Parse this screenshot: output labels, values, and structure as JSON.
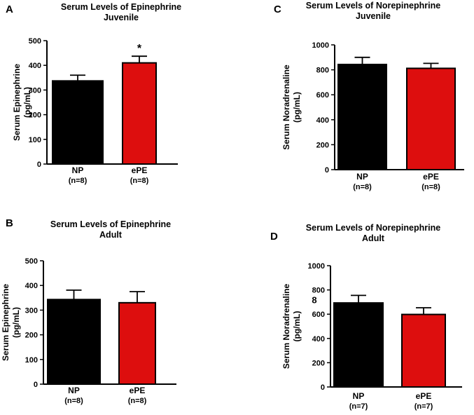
{
  "colors": {
    "np": "#000000",
    "epe": "#dd0e0e",
    "axis": "#000000"
  },
  "chart_data": [
    {
      "panel": "A",
      "type": "bar",
      "title": [
        "Serum Levels of Epinephrine",
        "Juvenile"
      ],
      "ylabel": [
        "Serum Epinephrine",
        "(pg/mL)"
      ],
      "ylim": [
        0,
        500
      ],
      "yticks": [
        "0",
        "100",
        "200",
        "300",
        "400",
        "500"
      ],
      "categories": [
        [
          "NP",
          "(n=8)"
        ],
        [
          "ePE",
          "(n=8)"
        ]
      ],
      "values": [
        337,
        410
      ],
      "errors": [
        23,
        27
      ],
      "significance": [
        "",
        "*"
      ]
    },
    {
      "panel": "B",
      "type": "bar",
      "title": [
        "Serum Levels of Epinephrine",
        "Adult"
      ],
      "ylabel": [
        "Serum Epinephrine",
        "(pg/mL)"
      ],
      "ylim": [
        0,
        500
      ],
      "yticks": [
        "0",
        "100",
        "200",
        "300",
        "400",
        "500"
      ],
      "categories": [
        [
          "NP",
          "(n=8)"
        ],
        [
          "ePE",
          "(n=8)"
        ]
      ],
      "values": [
        343,
        330
      ],
      "errors": [
        38,
        45
      ],
      "significance": [
        "",
        ""
      ]
    },
    {
      "panel": "C",
      "type": "bar",
      "title": [
        "Serum Levels of Norepinephrine",
        "Juvenile"
      ],
      "ylabel": [
        "Serum Noradrenaline",
        "(pg/mL)"
      ],
      "ylim": [
        0,
        1000
      ],
      "yticks": [
        "0",
        "200",
        "400",
        "600",
        "800",
        "1000"
      ],
      "categories": [
        [
          "NP",
          "(n=8)"
        ],
        [
          "ePE",
          "(n=8)"
        ]
      ],
      "values": [
        843,
        812
      ],
      "errors": [
        57,
        40
      ],
      "significance": [
        "",
        ""
      ]
    },
    {
      "panel": "D",
      "type": "bar",
      "title": [
        "Serum Levels of Norepinephrine",
        "Adult"
      ],
      "ylabel": [
        "Serum Noradrenaline",
        "(pg/mL)"
      ],
      "ylim": [
        0,
        1000
      ],
      "yticks": [
        "0",
        "200",
        "400",
        "600",
        "800",
        "1000"
      ],
      "categories": [
        [
          "NP",
          "(n=7)"
        ],
        [
          "ePE",
          "(n=7)"
        ]
      ],
      "values": [
        693,
        598
      ],
      "errors": [
        62,
        55
      ],
      "significance": [
        "",
        ""
      ],
      "annotations": [
        "8"
      ]
    }
  ]
}
